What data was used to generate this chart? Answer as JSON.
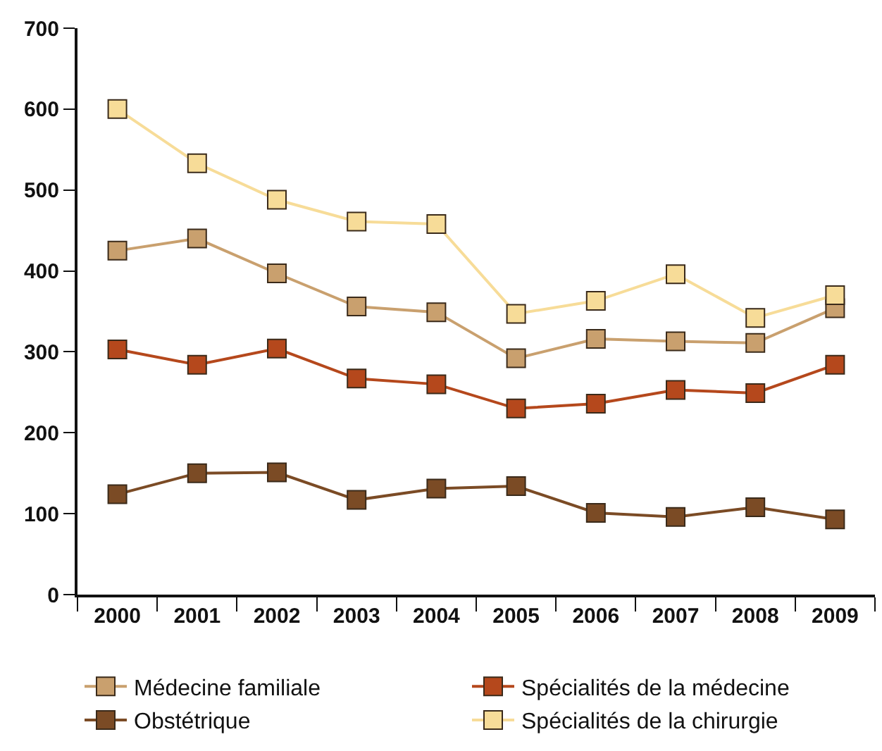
{
  "chart_data": {
    "type": "line",
    "categories": [
      "2000",
      "2001",
      "2002",
      "2003",
      "2004",
      "2005",
      "2006",
      "2007",
      "2008",
      "2009"
    ],
    "series": [
      {
        "name": "Médecine familiale",
        "color": "#c9a06e",
        "values": [
          425,
          440,
          397,
          356,
          349,
          292,
          316,
          313,
          311,
          354
        ]
      },
      {
        "name": "Spécialités de la médecine",
        "color": "#b5481c",
        "values": [
          303,
          284,
          304,
          267,
          260,
          230,
          236,
          253,
          249,
          284
        ]
      },
      {
        "name": "Obstétrique",
        "color": "#7b4b25",
        "values": [
          124,
          150,
          151,
          117,
          131,
          134,
          101,
          96,
          108,
          93
        ]
      },
      {
        "name": "Spécialités de la chirurgie",
        "color": "#f7dc98",
        "values": [
          600,
          533,
          488,
          461,
          458,
          347,
          363,
          396,
          342,
          370
        ]
      }
    ],
    "ylim": [
      0,
      700
    ],
    "yticks": [
      0,
      100,
      200,
      300,
      400,
      500,
      600,
      700
    ],
    "legend": "bottom",
    "marker": "square",
    "line_style": "solid"
  }
}
